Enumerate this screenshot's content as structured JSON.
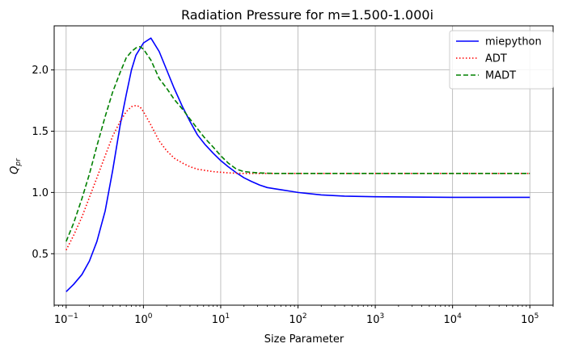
{
  "chart_data": {
    "type": "line",
    "title": "Radiation Pressure for m=1.500-1.000i",
    "xlabel": "Size Parameter",
    "ylabel": "Q",
    "ylabel_sub": "pr",
    "x_scale": "log",
    "xlim": [
      0.07,
      200000
    ],
    "ylim": [
      0.08,
      2.36
    ],
    "grid": true,
    "legend_position": "top-right",
    "xticks": [
      {
        "value": 0.1,
        "base": "10",
        "exp": "−1"
      },
      {
        "value": 1,
        "base": "10",
        "exp": "0"
      },
      {
        "value": 10,
        "base": "10",
        "exp": "1"
      },
      {
        "value": 100,
        "base": "10",
        "exp": "2"
      },
      {
        "value": 1000,
        "base": "10",
        "exp": "3"
      },
      {
        "value": 10000,
        "base": "10",
        "exp": "4"
      },
      {
        "value": 100000,
        "base": "10",
        "exp": "5"
      }
    ],
    "yticks": [
      {
        "value": 0.5,
        "label": "0.5"
      },
      {
        "value": 1.0,
        "label": "1.0"
      },
      {
        "value": 1.5,
        "label": "1.5"
      },
      {
        "value": 2.0,
        "label": "2.0"
      }
    ],
    "series": [
      {
        "name": "miepython",
        "color": "#0000ff",
        "dash": "solid",
        "x": [
          0.1,
          0.125,
          0.16,
          0.2,
          0.25,
          0.32,
          0.4,
          0.5,
          0.6,
          0.7,
          0.8,
          1.0,
          1.25,
          1.6,
          2.0,
          2.5,
          3.2,
          4.0,
          5.0,
          6.3,
          8.0,
          10,
          12.5,
          16,
          20,
          25,
          32,
          40,
          50,
          63,
          80,
          100,
          200,
          400,
          1000,
          10000,
          100000
        ],
        "y": [
          0.19,
          0.25,
          0.33,
          0.44,
          0.6,
          0.85,
          1.18,
          1.55,
          1.8,
          2.0,
          2.12,
          2.22,
          2.26,
          2.15,
          2.0,
          1.85,
          1.7,
          1.58,
          1.47,
          1.39,
          1.32,
          1.26,
          1.21,
          1.16,
          1.12,
          1.09,
          1.06,
          1.04,
          1.03,
          1.02,
          1.01,
          1.0,
          0.98,
          0.97,
          0.965,
          0.96,
          0.96
        ]
      },
      {
        "name": "ADT",
        "color": "#ff0000",
        "dash": "dotted",
        "x": [
          0.1,
          0.125,
          0.16,
          0.2,
          0.25,
          0.32,
          0.4,
          0.5,
          0.6,
          0.7,
          0.8,
          0.9,
          1.0,
          1.25,
          1.6,
          2.0,
          2.5,
          3.2,
          4.0,
          5.0,
          6.3,
          8.0,
          10,
          12.5,
          16,
          20,
          30,
          50,
          100,
          1000,
          10000,
          100000
        ],
        "y": [
          0.53,
          0.65,
          0.8,
          0.96,
          1.12,
          1.3,
          1.46,
          1.58,
          1.66,
          1.7,
          1.71,
          1.7,
          1.66,
          1.55,
          1.42,
          1.34,
          1.28,
          1.24,
          1.21,
          1.19,
          1.18,
          1.17,
          1.165,
          1.16,
          1.157,
          1.155,
          1.155,
          1.155,
          1.155,
          1.155,
          1.155,
          1.155
        ]
      },
      {
        "name": "MADT",
        "color": "#008000",
        "dash": "dashed",
        "x": [
          0.1,
          0.125,
          0.16,
          0.2,
          0.25,
          0.32,
          0.4,
          0.5,
          0.6,
          0.7,
          0.8,
          0.9,
          1.0,
          1.25,
          1.6,
          2.0,
          2.5,
          3.2,
          4.0,
          5.0,
          6.3,
          8.0,
          10,
          12.5,
          16,
          20,
          30,
          50,
          100,
          1000,
          10000,
          100000
        ],
        "y": [
          0.6,
          0.75,
          0.95,
          1.15,
          1.38,
          1.62,
          1.82,
          1.98,
          2.1,
          2.15,
          2.18,
          2.19,
          2.17,
          2.08,
          1.93,
          1.85,
          1.76,
          1.68,
          1.6,
          1.52,
          1.44,
          1.37,
          1.3,
          1.24,
          1.19,
          1.17,
          1.16,
          1.155,
          1.155,
          1.155,
          1.155,
          1.155
        ]
      }
    ]
  }
}
